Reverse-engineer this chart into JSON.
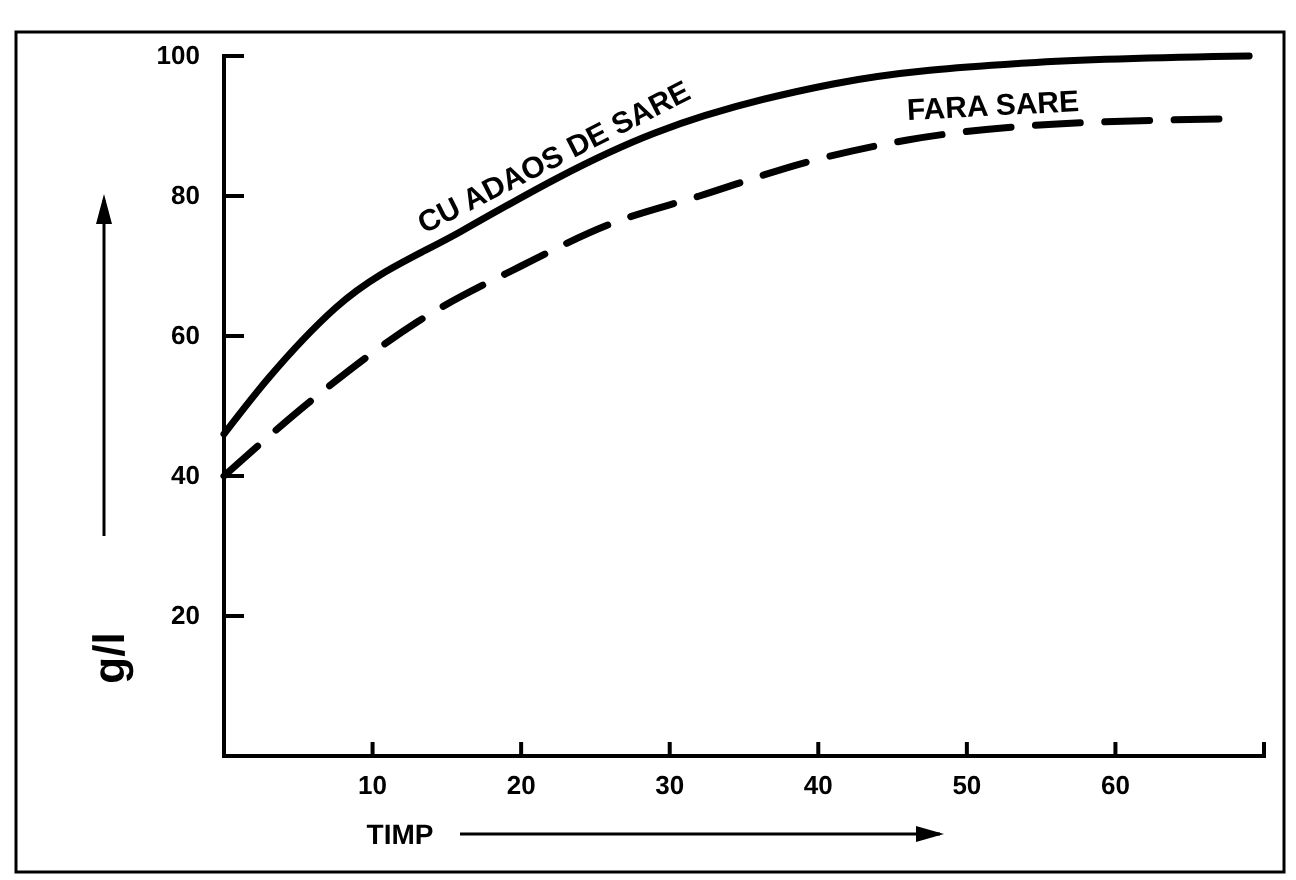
{
  "chart_data": {
    "type": "line",
    "xlabel": "TIMP",
    "ylabel": "g/l",
    "xlim": [
      0,
      70
    ],
    "ylim": [
      0,
      100
    ],
    "xticks": [
      10,
      20,
      30,
      40,
      50,
      60
    ],
    "yticks": [
      20,
      40,
      60,
      80,
      100
    ],
    "grid": false,
    "marker": "none",
    "series": [
      {
        "name": "CU ADAOS DE SARE",
        "color": "#000000",
        "line_style": "solid",
        "x": [
          0,
          3,
          7.5,
          16,
          29,
          41,
          54,
          69
        ],
        "values": [
          46,
          54,
          64,
          75,
          89,
          96,
          99,
          100
        ]
      },
      {
        "name": "FARA SARE",
        "color": "#000000",
        "line_style": "dashed",
        "x": [
          0,
          6,
          13,
          20,
          26,
          32,
          39.5,
          46,
          54,
          67
        ],
        "values": [
          40,
          51,
          62,
          70,
          76,
          80,
          85,
          88,
          90,
          91
        ]
      }
    ]
  }
}
